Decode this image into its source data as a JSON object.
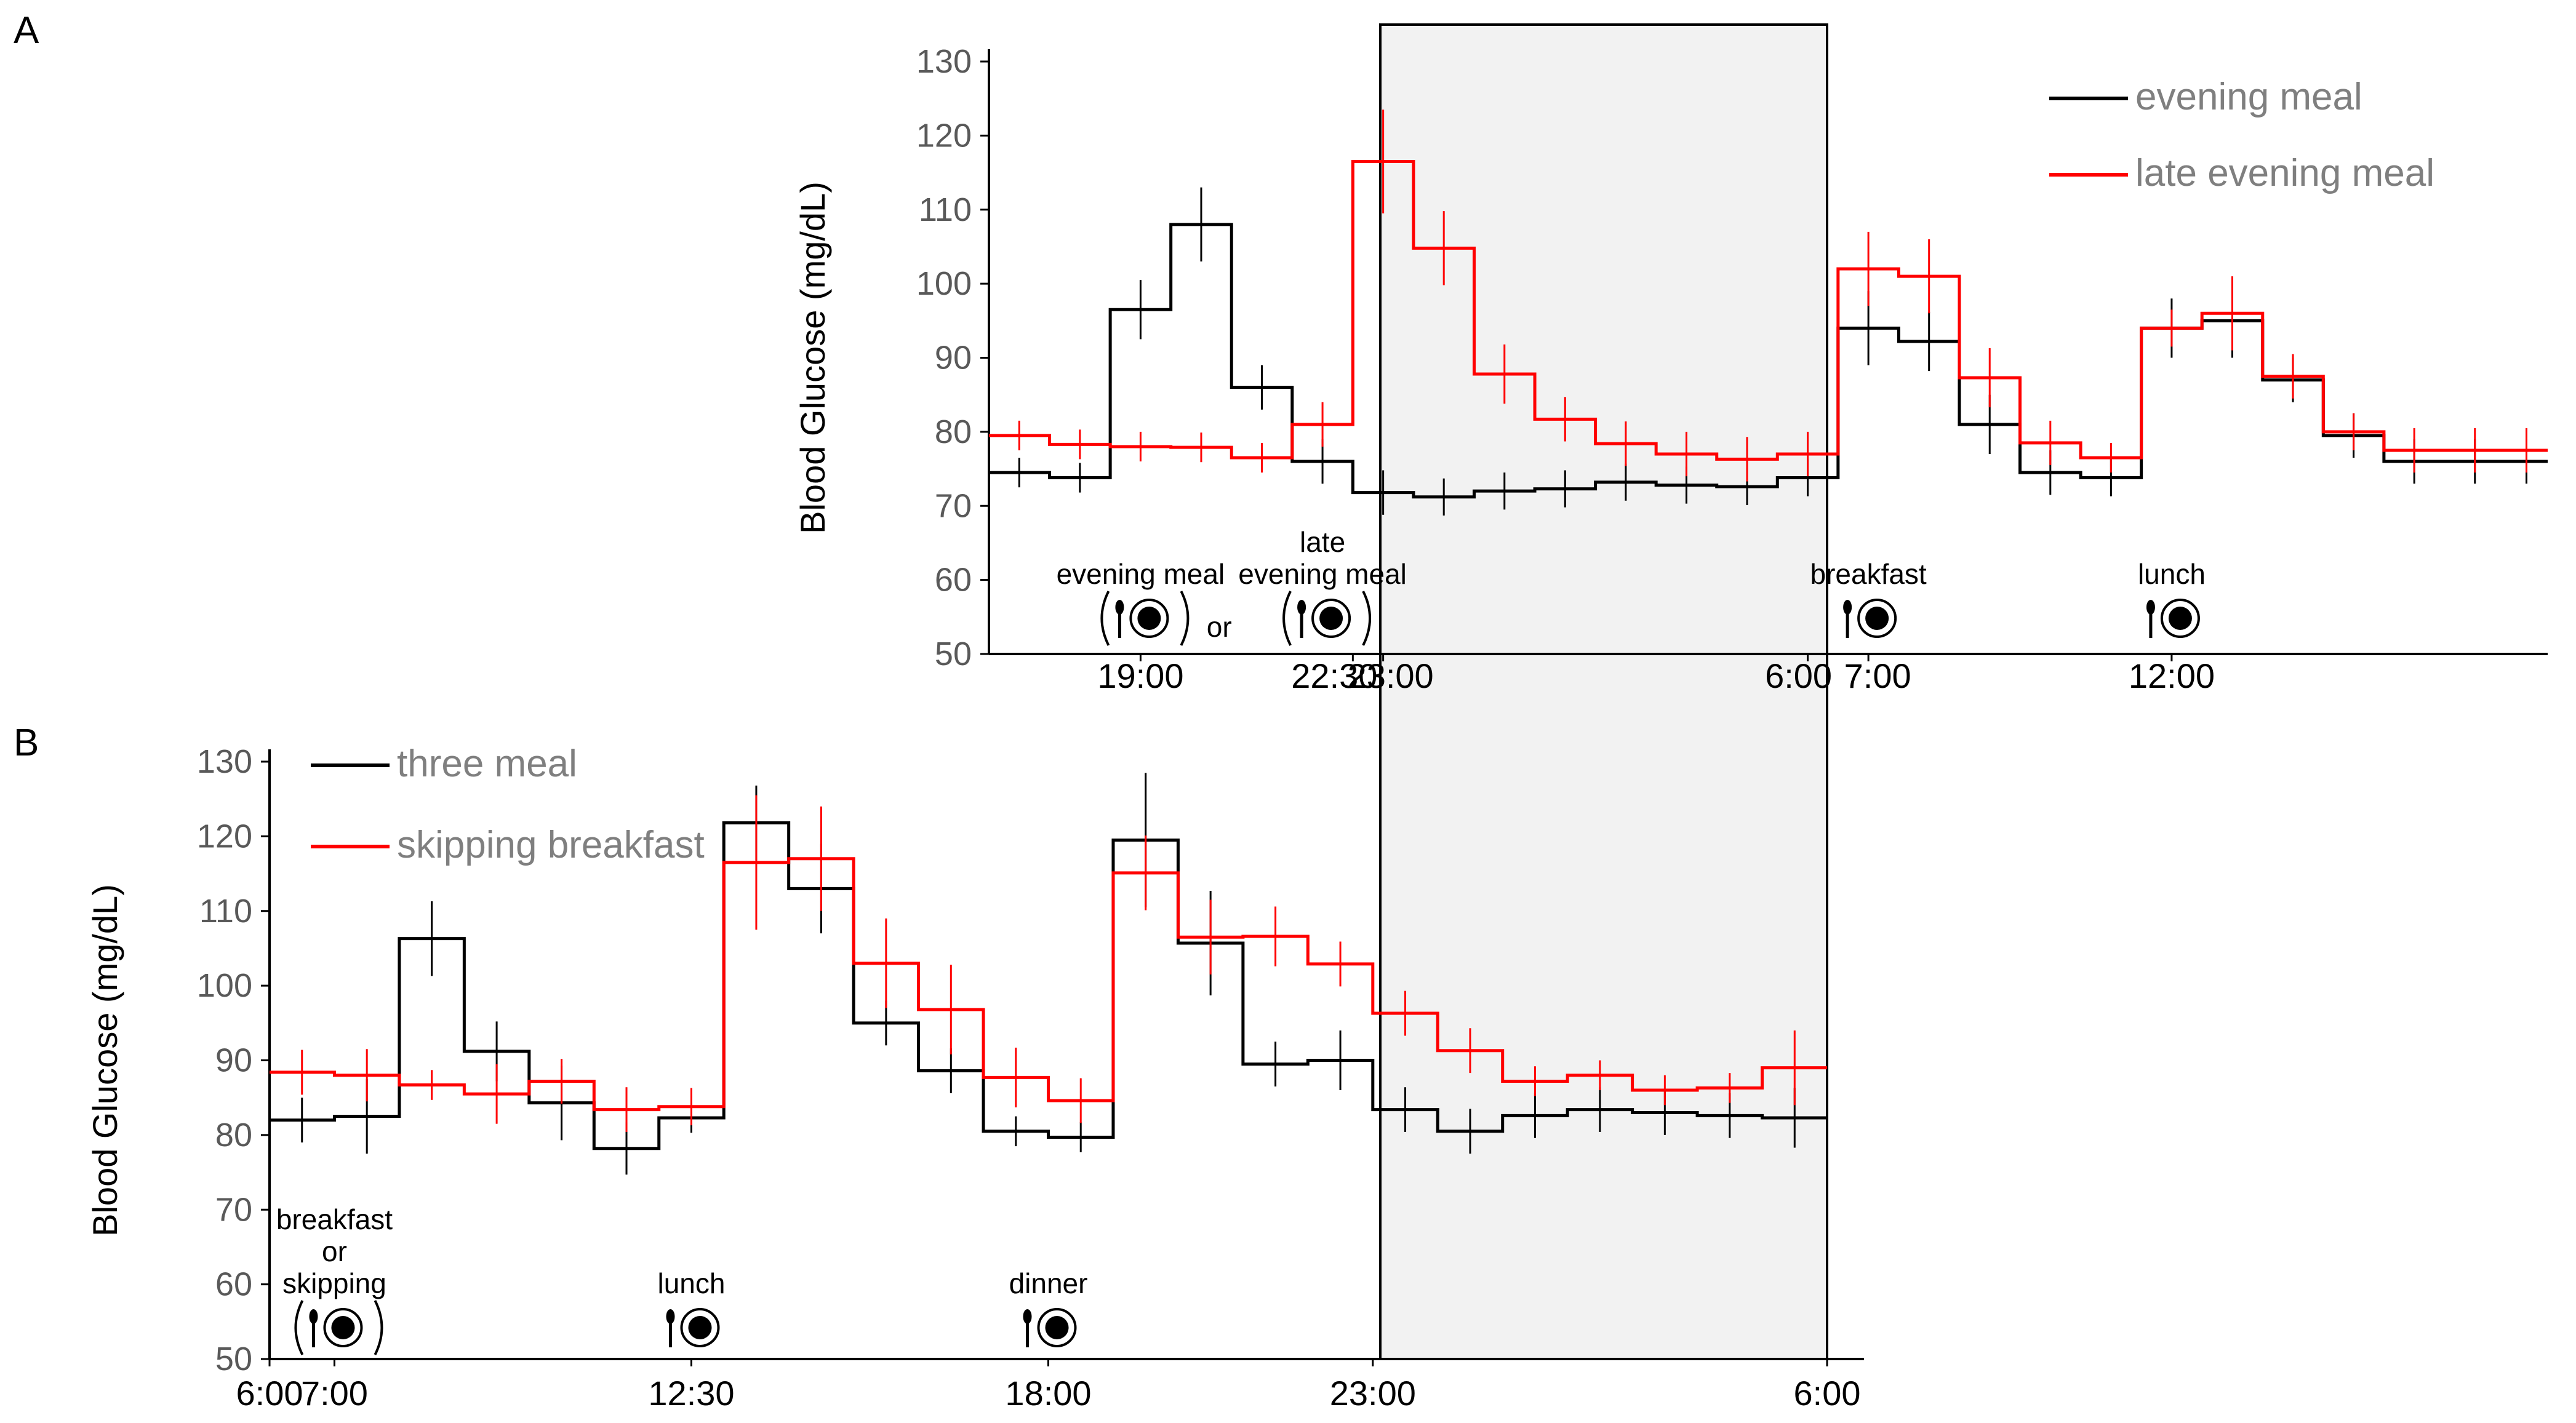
{
  "figure": {
    "panel_a_letter": "A",
    "panel_b_letter": "B"
  },
  "colors": {
    "black_series": "#000000",
    "red_series": "#ff0000",
    "shade": "#f2f2f2"
  },
  "chart_data": [
    {
      "type": "line",
      "panel": "A",
      "ylabel": "Blood Glucose (mg/dL)",
      "ylim": [
        50,
        130
      ],
      "yticks": [
        "50",
        "60",
        "70",
        "80",
        "90",
        "100",
        "110",
        "120",
        "130"
      ],
      "xlim": [
        16.5,
        42.2
      ],
      "xticks": [
        {
          "x": 19.0,
          "label": "19:00"
        },
        {
          "x": 22.5,
          "label": "22:30"
        },
        {
          "x": 23.0,
          "label": "23:00"
        },
        {
          "x": 30.0,
          "label": "6:00"
        },
        {
          "x": 31.0,
          "label": "7:00"
        },
        {
          "x": 36.0,
          "label": "12:00"
        }
      ],
      "shaded_interval": [
        23.0,
        30.0
      ],
      "series": [
        {
          "name": "evening meal",
          "color": "#000000",
          "step_x": [
            16.5,
            17.5,
            18.5,
            19.5,
            20.5,
            21.5,
            22.5,
            23.5,
            24.5,
            25.5,
            26.5,
            27.5,
            28.5,
            29.5,
            30.5,
            31.5,
            32.5,
            33.5,
            34.5,
            35.5,
            36.5,
            37.5,
            38.5,
            39.5,
            40.5,
            41.5,
            42.2
          ],
          "values": [
            74.5,
            73.8,
            96.5,
            108,
            86,
            76,
            71.8,
            71.2,
            72,
            72.3,
            73.2,
            72.8,
            72.6,
            73.8,
            94,
            92.2,
            81,
            74.5,
            73.8,
            94,
            95,
            87,
            79.5,
            76,
            76,
            76
          ],
          "errors": [
            2,
            2,
            4,
            5,
            3,
            3,
            3,
            2.5,
            2.5,
            2.5,
            2.5,
            2.5,
            2.5,
            2.5,
            5,
            4,
            4,
            3,
            2.5,
            4,
            5,
            3,
            3,
            3,
            3,
            3
          ]
        },
        {
          "name": "late evening meal",
          "color": "#ff0000",
          "step_x": [
            16.5,
            17.5,
            18.5,
            19.5,
            20.5,
            21.5,
            22.5,
            23.5,
            24.5,
            25.5,
            26.5,
            27.5,
            28.5,
            29.5,
            30.5,
            31.5,
            32.5,
            33.5,
            34.5,
            35.5,
            36.5,
            37.5,
            38.5,
            39.5,
            40.5,
            41.5,
            42.2
          ],
          "values": [
            79.5,
            78.3,
            78,
            77.9,
            76.5,
            81,
            116.5,
            104.8,
            87.8,
            81.7,
            78.4,
            77,
            76.3,
            77,
            102,
            101,
            87.3,
            78.5,
            76.5,
            94,
            96,
            87.5,
            80,
            77.5,
            77.5,
            77.5
          ],
          "errors": [
            2,
            2,
            2,
            2,
            2,
            3,
            7,
            5,
            4,
            3,
            3,
            3,
            3,
            3,
            5,
            5,
            4,
            3,
            2,
            2.5,
            5,
            3,
            2.5,
            3,
            3,
            3
          ]
        }
      ],
      "meal_labels": [
        {
          "x": 19.0,
          "text": "evening meal",
          "optional": true
        },
        {
          "x": 22.0,
          "text": "late\nevening meal",
          "optional": true
        },
        {
          "x": 20.5,
          "text": "or"
        },
        {
          "x": 31.0,
          "text": "breakfast",
          "optional": false
        },
        {
          "x": 36.0,
          "text": "lunch",
          "optional": false
        }
      ],
      "legend": [
        "evening meal",
        "late evening meal"
      ],
      "legend_position": "top-right"
    },
    {
      "type": "line",
      "panel": "B",
      "ylabel": "Blood Glucose (mg/dL)",
      "ylim": [
        50,
        130
      ],
      "yticks": [
        "50",
        "60",
        "70",
        "80",
        "90",
        "100",
        "110",
        "120",
        "130"
      ],
      "xlim": [
        6.0,
        30.3
      ],
      "xticks": [
        {
          "x": 6.0,
          "label": "6:00"
        },
        {
          "x": 7.0,
          "label": "7:00"
        },
        {
          "x": 12.5,
          "label": "12:30"
        },
        {
          "x": 18.0,
          "label": "18:00"
        },
        {
          "x": 23.0,
          "label": "23:00"
        },
        {
          "x": 30.0,
          "label": "6:00"
        }
      ],
      "shaded_interval": [
        23.0,
        30.0
      ],
      "series": [
        {
          "name": "three meal",
          "color": "#000000",
          "step_x": [
            6.0,
            7.0,
            8.0,
            9.0,
            10.0,
            11.0,
            12.0,
            13.0,
            14.0,
            15.0,
            16.0,
            17.0,
            18.0,
            19.0,
            20.0,
            21.0,
            22.0,
            23.0,
            24.0,
            25.0,
            26.0,
            27.0,
            28.0,
            29.0,
            30.0
          ],
          "values": [
            82,
            82.5,
            106.3,
            91.2,
            84.3,
            78.2,
            82.3,
            121.8,
            113,
            95,
            88.6,
            80.5,
            79.7,
            119.5,
            105.7,
            89.5,
            90,
            83.4,
            80.5,
            82.6,
            83.4,
            83,
            82.6,
            82.3
          ],
          "errors": [
            3,
            5,
            5,
            4,
            5,
            3.5,
            2,
            5,
            6,
            3,
            3,
            2,
            2,
            9,
            7,
            3,
            4,
            3,
            3,
            3,
            3,
            3,
            3,
            4
          ]
        },
        {
          "name": "skipping breakfast",
          "color": "#ff0000",
          "step_x": [
            6.0,
            7.0,
            8.0,
            9.0,
            10.0,
            11.0,
            12.0,
            13.0,
            14.0,
            15.0,
            16.0,
            17.0,
            18.0,
            19.0,
            20.0,
            21.0,
            22.0,
            23.0,
            24.0,
            25.0,
            26.0,
            27.0,
            28.0,
            29.0,
            30.0
          ],
          "values": [
            88.4,
            88,
            86.7,
            85.5,
            87.2,
            83.4,
            83.8,
            116.5,
            117,
            103,
            96.8,
            87.7,
            84.6,
            115.1,
            106.5,
            106.6,
            102.9,
            96.3,
            91.3,
            87.2,
            88,
            86,
            86.3,
            89
          ],
          "errors": [
            3,
            3.5,
            2,
            4,
            3,
            3,
            2.5,
            9,
            7,
            6,
            6,
            4,
            3,
            5,
            5,
            4,
            3,
            3,
            3,
            2,
            2,
            2,
            2,
            5
          ]
        }
      ],
      "meal_labels": [
        {
          "x": 7.0,
          "text": "breakfast\nor\nskipping",
          "optional": true
        },
        {
          "x": 12.5,
          "text": "lunch",
          "optional": false
        },
        {
          "x": 18.0,
          "text": "dinner",
          "optional": false
        }
      ],
      "legend": [
        "three meal",
        "skipping breakfast"
      ],
      "legend_position": "top-left"
    }
  ]
}
